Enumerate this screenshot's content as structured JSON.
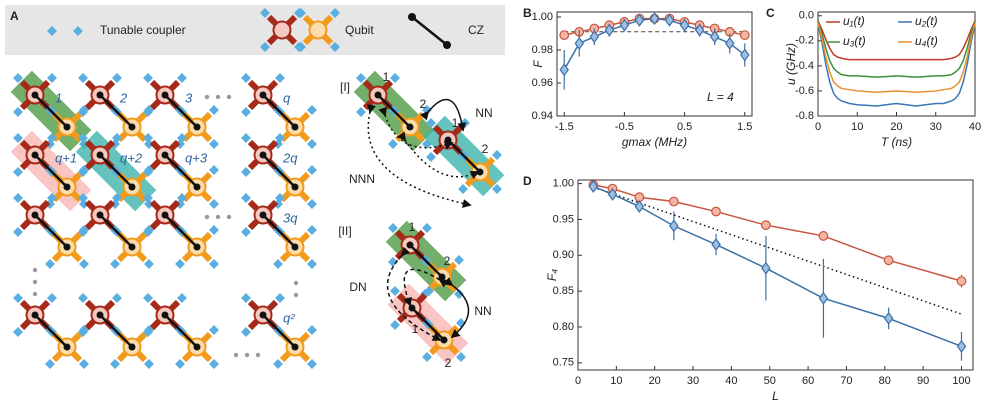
{
  "diagram": {
    "panel": "A",
    "legend": [
      "Tunable coupler",
      "Qubit",
      "CZ"
    ],
    "grid_labels": [
      "1",
      "2",
      "3",
      "q",
      "q+1",
      "q+2",
      "q+3",
      "2q",
      "3q",
      "q²"
    ],
    "inset_I": {
      "tag": "[I]",
      "labels": [
        "1",
        "2",
        "1",
        "2",
        "NN",
        "NNN"
      ]
    },
    "inset_II": {
      "tag": "[II]",
      "labels": [
        "1",
        "2",
        "1",
        "2",
        "DN",
        "NN"
      ]
    }
  },
  "chart_data": [
    {
      "label": "B",
      "type": "line",
      "xlabel": "gmax (MHz)",
      "ylabel": "F",
      "annotation": "L = 4",
      "x": [
        -1.5,
        -1.25,
        -1,
        -0.75,
        -0.5,
        -0.25,
        0,
        0.25,
        0.5,
        0.75,
        1,
        1.25,
        1.5
      ],
      "xlim": [
        -1.62,
        1.62
      ],
      "xticks": [
        -1.5,
        -0.5,
        0.5,
        1.5
      ],
      "ylim": [
        0.94,
        1.003
      ],
      "yticks": [
        0.94,
        0.96,
        0.98,
        {
          "value": 1,
          "label": "1.00"
        }
      ],
      "reference": 0.991,
      "series": [
        {
          "color": "#c8553d",
          "fill": "#f5b5a5",
          "marker": "circle",
          "values": [
            0.989,
            0.991,
            0.993,
            0.995,
            0.997,
            0.999,
            0.999,
            0.999,
            0.997,
            0.995,
            0.993,
            0.991,
            0.989
          ]
        },
        {
          "color": "#3b6fa8",
          "fill": "#9dbfe2",
          "marker": "diamond",
          "values": [
            0.968,
            0.984,
            0.988,
            0.992,
            0.995,
            0.998,
            0.999,
            0.998,
            0.995,
            0.992,
            0.988,
            0.984,
            0.977
          ],
          "errors": [
            0.012,
            0.008,
            0.005,
            0.004,
            0.003,
            0.002,
            0.001,
            0.002,
            0.003,
            0.004,
            0.005,
            0.006,
            0.007
          ]
        }
      ]
    },
    {
      "label": "C",
      "type": "line",
      "xlabel": "T (ns)",
      "ylabel": "u (GHz)",
      "x": [
        0,
        1,
        2,
        3,
        4,
        5,
        6,
        8,
        10,
        15,
        20,
        25,
        30,
        32,
        34,
        35,
        36,
        37,
        38,
        39,
        40
      ],
      "xlim": [
        0,
        40
      ],
      "xticks": [
        0,
        10,
        20,
        30,
        40
      ],
      "ylim": [
        -0.8,
        0.03
      ],
      "yticks": [
        {
          "value": 0,
          "label": "0.0"
        },
        -0.2,
        -0.4,
        -0.6,
        -0.8
      ],
      "series": [
        {
          "name": "u₁(t)",
          "color": "#c0392b",
          "values": [
            -0.04,
            -0.11,
            -0.19,
            -0.26,
            -0.31,
            -0.33,
            -0.34,
            -0.35,
            -0.35,
            -0.35,
            -0.35,
            -0.35,
            -0.35,
            -0.35,
            -0.34,
            -0.33,
            -0.31,
            -0.26,
            -0.19,
            -0.11,
            -0.04
          ]
        },
        {
          "name": "u₂(t)",
          "color": "#3a75b5",
          "values": [
            -0.07,
            -0.21,
            -0.39,
            -0.53,
            -0.62,
            -0.66,
            -0.68,
            -0.7,
            -0.71,
            -0.72,
            -0.7,
            -0.72,
            -0.7,
            -0.7,
            -0.68,
            -0.66,
            -0.62,
            -0.53,
            -0.39,
            -0.21,
            -0.07
          ]
        },
        {
          "name": "u₃(t)",
          "color": "#3d8f3d",
          "values": [
            -0.05,
            -0.14,
            -0.26,
            -0.36,
            -0.42,
            -0.45,
            -0.47,
            -0.48,
            -0.48,
            -0.49,
            -0.48,
            -0.49,
            -0.48,
            -0.48,
            -0.47,
            -0.45,
            -0.42,
            -0.36,
            -0.26,
            -0.14,
            -0.05
          ]
        },
        {
          "name": "u₄(t)",
          "color": "#e8902e",
          "values": [
            -0.06,
            -0.18,
            -0.33,
            -0.45,
            -0.53,
            -0.56,
            -0.58,
            -0.59,
            -0.6,
            -0.61,
            -0.6,
            -0.61,
            -0.6,
            -0.59,
            -0.58,
            -0.56,
            -0.53,
            -0.45,
            -0.33,
            -0.18,
            -0.06
          ]
        }
      ]
    },
    {
      "label": "D",
      "type": "line",
      "xlabel": "L",
      "ylabel": "F₄",
      "x": [
        4,
        9,
        16,
        25,
        36,
        49,
        64,
        81,
        100
      ],
      "xlim": [
        0,
        103
      ],
      "xticks": [
        0,
        10,
        20,
        30,
        40,
        50,
        60,
        70,
        80,
        90,
        100
      ],
      "ylim": [
        0.74,
        1.005
      ],
      "yticks": [
        0.75,
        {
          "value": 0.8,
          "label": "0.80"
        },
        0.85,
        {
          "value": 0.9,
          "label": "0.90"
        },
        0.95,
        {
          "value": 1,
          "label": "1.00"
        }
      ],
      "fit": {
        "x": [
          4,
          100
        ],
        "values": [
          0.995,
          0.818
        ]
      },
      "series": [
        {
          "color": "#c8553d",
          "fill": "#f5b5a5",
          "marker": "circle",
          "values": [
            0.998,
            0.993,
            0.981,
            0.975,
            0.961,
            0.942,
            0.927,
            0.893,
            0.864
          ],
          "errors": [
            0.002,
            0.002,
            0.002,
            0.002,
            0.002,
            0.002,
            0.002,
            0.006,
            0.009
          ]
        },
        {
          "color": "#3b6fa8",
          "fill": "#9dbfe2",
          "marker": "diamond",
          "values": [
            0.996,
            0.985,
            0.968,
            0.941,
            0.915,
            0.882,
            0.84,
            0.812,
            0.773
          ],
          "errors": [
            0.003,
            0.004,
            0.006,
            0.02,
            0.015,
            0.045,
            0.055,
            0.015,
            0.02
          ]
        }
      ]
    }
  ]
}
